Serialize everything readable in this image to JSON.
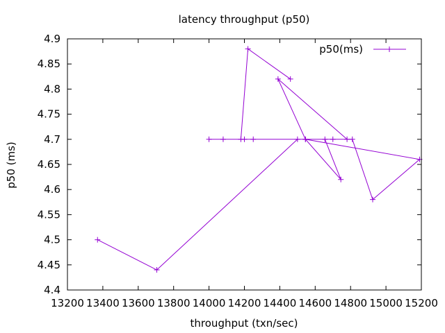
{
  "chart_data": {
    "type": "line",
    "title": "latency throughput (p50)",
    "xlabel": "throughput (txn/sec)",
    "ylabel": "p50 (ms)",
    "xlim": [
      13200,
      15200
    ],
    "ylim": [
      4.4,
      4.9
    ],
    "xticks": [
      13200,
      13400,
      13600,
      13800,
      14000,
      14200,
      14400,
      14600,
      14800,
      15000,
      15200
    ],
    "yticks": [
      4.4,
      4.45,
      4.5,
      4.55,
      4.6,
      4.65,
      4.7,
      4.75,
      4.8,
      4.85,
      4.9
    ],
    "grid": false,
    "legend_position": "top-right",
    "series": [
      {
        "name": "p50(ms)",
        "color": "#9400d3",
        "marker": "plus",
        "x": [
          13370,
          13705,
          14500,
          14000,
          14080,
          14700,
          14810,
          14925,
          15190,
          14545,
          14390,
          14780,
          14250,
          14200,
          14655,
          14745,
          14545,
          14180,
          14220,
          14460
        ],
        "y": [
          4.5,
          4.44,
          4.7,
          4.7,
          4.7,
          4.7,
          4.7,
          4.58,
          4.66,
          4.7,
          4.82,
          4.7,
          4.7,
          4.7,
          4.7,
          4.62,
          4.7,
          4.7,
          4.88,
          4.82
        ]
      }
    ]
  }
}
